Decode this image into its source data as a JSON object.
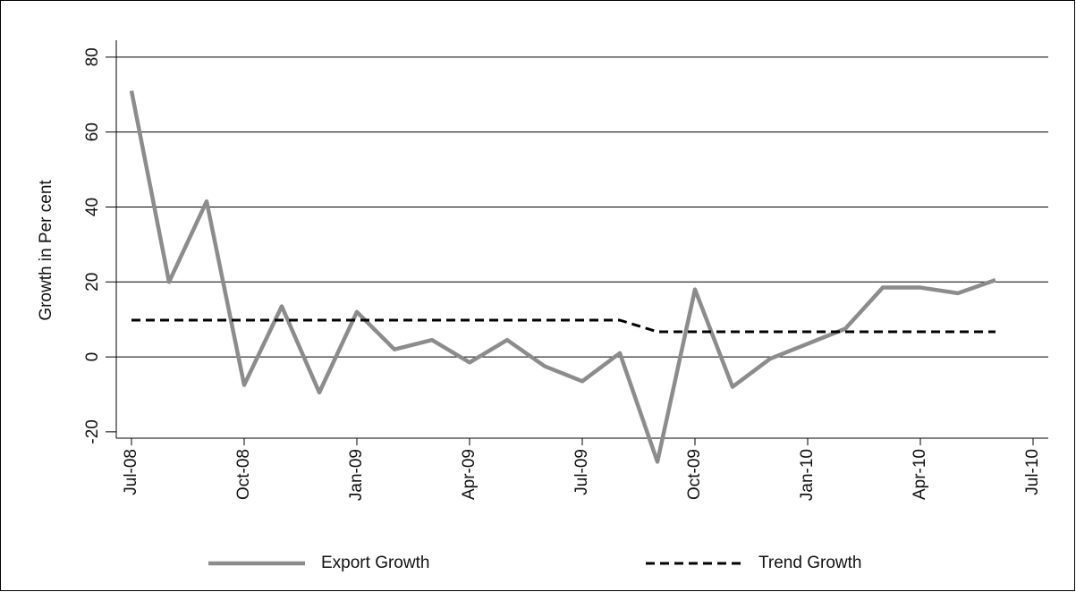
{
  "chart_data": {
    "type": "line",
    "y_label": "Growth in Per cent",
    "categories": [
      "Jul-08",
      null,
      null,
      "Oct-08",
      null,
      null,
      "Jan-09",
      null,
      null,
      "Apr-09",
      null,
      null,
      "Jul-09",
      null,
      null,
      "Oct-09",
      null,
      null,
      "Jan-10",
      null,
      null,
      "Apr-10",
      null,
      null,
      "Jul-10"
    ],
    "series": [
      {
        "name": "Export Growth",
        "color": "#8c8c8c",
        "style": "solid",
        "values": [
          71,
          20,
          41.5,
          -7.5,
          13.5,
          -9.5,
          12,
          2,
          4.5,
          -1.5,
          4.5,
          -2.5,
          -6.5,
          1,
          -28,
          18,
          -8,
          -0.5,
          3.5,
          7.5,
          18.5,
          18.5,
          17,
          20.5,
          null
        ]
      },
      {
        "name": "Trend Growth",
        "color": "#000000",
        "style": "dashed",
        "values": [
          9.8,
          9.8,
          9.8,
          9.8,
          9.8,
          9.8,
          9.8,
          9.8,
          9.8,
          9.8,
          9.8,
          9.8,
          9.8,
          9.8,
          6.7,
          6.7,
          6.7,
          6.7,
          6.7,
          6.7,
          6.7,
          6.7,
          6.7,
          6.7,
          null
        ]
      }
    ],
    "ylim": [
      -21.7,
      84.5
    ],
    "yticks": [
      -20,
      0,
      20,
      40,
      60,
      80
    ],
    "grid": true,
    "legend": "bottom"
  }
}
